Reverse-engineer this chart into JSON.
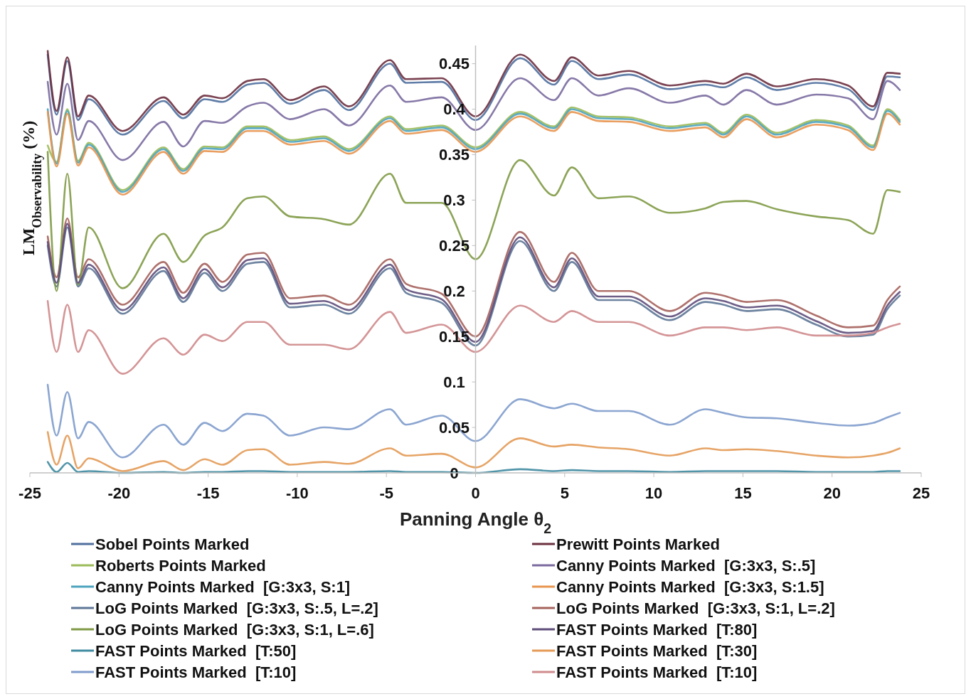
{
  "chart_data": {
    "type": "line",
    "xlabel": "Panning Angle θ$_{2}$",
    "ylabel": "LM$_{Observability}$ (%)",
    "xlim": [
      -25,
      25
    ],
    "xticks": [
      -25,
      -20,
      -15,
      -10,
      -5,
      0,
      5,
      10,
      15,
      20,
      25
    ],
    "ylim": [
      0,
      0.47
    ],
    "yticks": [
      0,
      0.05,
      0.1,
      0.15,
      0.2,
      0.25,
      0.3,
      0.35,
      0.4,
      0.45
    ],
    "grid": false,
    "legend": "bottom",
    "marker": "none",
    "line_style": "solid",
    "x": [
      -24,
      -23.5,
      -22.9,
      -22.3,
      -21.7,
      -19.8,
      -17.5,
      -16.4,
      -15.2,
      -14.2,
      -12.8,
      -11.9,
      -10.4,
      -8.5,
      -7.1,
      -4.8,
      -3.9,
      -1.9,
      0,
      2.5,
      4.4,
      5.4,
      6.9,
      8.6,
      10.9,
      12.9,
      13.9,
      15.2,
      16.9,
      19.1,
      20.9,
      22.3,
      23.1,
      23.8
    ],
    "series": [
      {
        "name": "Sobel Points Marked",
        "color": "#4f6f9d",
        "values": [
          0.46,
          0.394,
          0.453,
          0.388,
          0.411,
          0.372,
          0.409,
          0.39,
          0.411,
          0.408,
          0.427,
          0.429,
          0.406,
          0.421,
          0.399,
          0.45,
          0.429,
          0.43,
          0.388,
          0.456,
          0.427,
          0.453,
          0.433,
          0.438,
          0.422,
          0.427,
          0.424,
          0.435,
          0.421,
          0.429,
          0.422,
          0.399,
          0.436,
          0.435
        ]
      },
      {
        "name": "Prewitt Points Marked",
        "color": "#6b2f3f",
        "values": [
          0.464,
          0.398,
          0.457,
          0.392,
          0.415,
          0.376,
          0.413,
          0.394,
          0.415,
          0.412,
          0.431,
          0.433,
          0.41,
          0.425,
          0.403,
          0.454,
          0.433,
          0.434,
          0.392,
          0.46,
          0.431,
          0.457,
          0.437,
          0.442,
          0.426,
          0.431,
          0.428,
          0.439,
          0.425,
          0.433,
          0.426,
          0.403,
          0.44,
          0.439
        ]
      },
      {
        "name": "Roberts Points Marked",
        "color": "#9bbb59",
        "values": [
          0.36,
          0.342,
          0.4,
          0.343,
          0.363,
          0.311,
          0.358,
          0.334,
          0.359,
          0.358,
          0.381,
          0.381,
          0.366,
          0.37,
          0.356,
          0.392,
          0.378,
          0.382,
          0.358,
          0.397,
          0.381,
          0.402,
          0.392,
          0.391,
          0.381,
          0.385,
          0.374,
          0.394,
          0.374,
          0.388,
          0.382,
          0.36,
          0.4,
          0.388
        ]
      },
      {
        "name": "Canny Points Marked  [G:3x3, S:.5]",
        "color": "#7a6a9e",
        "values": [
          0.43,
          0.372,
          0.428,
          0.366,
          0.387,
          0.344,
          0.386,
          0.359,
          0.387,
          0.385,
          0.403,
          0.407,
          0.389,
          0.4,
          0.382,
          0.426,
          0.408,
          0.413,
          0.377,
          0.434,
          0.41,
          0.434,
          0.415,
          0.423,
          0.407,
          0.415,
          0.405,
          0.421,
          0.405,
          0.416,
          0.412,
          0.389,
          0.431,
          0.421
        ]
      },
      {
        "name": "Canny Points Marked  [G:3x3, S:1]",
        "color": "#4ba3bd",
        "values": [
          0.4,
          0.34,
          0.398,
          0.341,
          0.361,
          0.309,
          0.356,
          0.332,
          0.357,
          0.356,
          0.379,
          0.379,
          0.364,
          0.368,
          0.354,
          0.39,
          0.376,
          0.38,
          0.356,
          0.395,
          0.379,
          0.4,
          0.39,
          0.389,
          0.379,
          0.383,
          0.372,
          0.392,
          0.372,
          0.386,
          0.38,
          0.358,
          0.398,
          0.386
        ]
      },
      {
        "name": "Canny Points Marked  [G:3x3, S:1.5]",
        "color": "#e8954f",
        "values": [
          0.397,
          0.337,
          0.395,
          0.338,
          0.358,
          0.306,
          0.353,
          0.329,
          0.354,
          0.353,
          0.376,
          0.376,
          0.361,
          0.365,
          0.351,
          0.387,
          0.373,
          0.377,
          0.353,
          0.392,
          0.376,
          0.397,
          0.387,
          0.386,
          0.376,
          0.38,
          0.369,
          0.389,
          0.369,
          0.383,
          0.377,
          0.355,
          0.395,
          0.383
        ]
      },
      {
        "name": "LoG Points Marked  [G:3x3, S:.5, L=.2]",
        "color": "#5d7596",
        "values": [
          0.25,
          0.205,
          0.27,
          0.205,
          0.225,
          0.175,
          0.222,
          0.188,
          0.22,
          0.2,
          0.23,
          0.232,
          0.182,
          0.185,
          0.175,
          0.225,
          0.198,
          0.187,
          0.14,
          0.255,
          0.2,
          0.232,
          0.19,
          0.19,
          0.168,
          0.188,
          0.185,
          0.178,
          0.18,
          0.163,
          0.15,
          0.152,
          0.18,
          0.195
        ]
      },
      {
        "name": "LoG Points Marked  [G:3x3, S:1, L=.2]",
        "color": "#a5625c",
        "values": [
          0.26,
          0.215,
          0.28,
          0.215,
          0.235,
          0.185,
          0.232,
          0.198,
          0.23,
          0.21,
          0.24,
          0.242,
          0.192,
          0.195,
          0.185,
          0.235,
          0.208,
          0.197,
          0.15,
          0.265,
          0.21,
          0.242,
          0.2,
          0.2,
          0.178,
          0.198,
          0.195,
          0.188,
          0.19,
          0.173,
          0.16,
          0.162,
          0.19,
          0.205
        ]
      },
      {
        "name": "LoG Points Marked  [G:3x3, S:1, L=.6]",
        "color": "#7f9a45",
        "values": [
          0.353,
          0.2,
          0.329,
          0.207,
          0.27,
          0.203,
          0.263,
          0.232,
          0.261,
          0.27,
          0.302,
          0.304,
          0.282,
          0.279,
          0.273,
          0.329,
          0.297,
          0.297,
          0.235,
          0.344,
          0.305,
          0.336,
          0.302,
          0.304,
          0.286,
          0.291,
          0.298,
          0.299,
          0.29,
          0.282,
          0.278,
          0.263,
          0.311,
          0.309
        ]
      },
      {
        "name": "FAST Points Marked  [T:80]",
        "color": "#5e4c7a",
        "values": [
          0.254,
          0.209,
          0.274,
          0.209,
          0.229,
          0.179,
          0.226,
          0.192,
          0.224,
          0.204,
          0.234,
          0.236,
          0.186,
          0.189,
          0.179,
          0.229,
          0.202,
          0.191,
          0.144,
          0.259,
          0.204,
          0.236,
          0.194,
          0.194,
          0.172,
          0.192,
          0.189,
          0.182,
          0.184,
          0.167,
          0.154,
          0.156,
          0.184,
          0.199
        ]
      },
      {
        "name": "FAST Points Marked  [T:50]",
        "color": "#3f8aa0",
        "values": [
          0.012,
          0.001,
          0.011,
          0.001,
          0.002,
          0,
          0.001,
          0,
          0.001,
          0.001,
          0.002,
          0.002,
          0.001,
          0.001,
          0.001,
          0.002,
          0.001,
          0.001,
          0,
          0.004,
          0.002,
          0.003,
          0.002,
          0.002,
          0.001,
          0.002,
          0.002,
          0.002,
          0.002,
          0.001,
          0.001,
          0.001,
          0.002,
          0.002
        ]
      },
      {
        "name": "FAST Points Marked  [T:30]",
        "color": "#e39a55",
        "values": [
          0.045,
          0.009,
          0.041,
          0.005,
          0.016,
          0.002,
          0.013,
          0.003,
          0.015,
          0.009,
          0.025,
          0.026,
          0.009,
          0.012,
          0.01,
          0.027,
          0.019,
          0.021,
          0.006,
          0.038,
          0.029,
          0.031,
          0.028,
          0.026,
          0.019,
          0.027,
          0.025,
          0.026,
          0.024,
          0.019,
          0.017,
          0.019,
          0.022,
          0.027
        ]
      },
      {
        "name": "FAST Points Marked  [T:10]",
        "color": "#7f9ccc",
        "values": [
          0.097,
          0.041,
          0.089,
          0.038,
          0.056,
          0.017,
          0.053,
          0.031,
          0.055,
          0.046,
          0.065,
          0.063,
          0.041,
          0.05,
          0.048,
          0.07,
          0.053,
          0.063,
          0.035,
          0.081,
          0.071,
          0.076,
          0.068,
          0.068,
          0.053,
          0.07,
          0.066,
          0.061,
          0.06,
          0.055,
          0.052,
          0.055,
          0.061,
          0.066
        ]
      },
      {
        "name": "FAST Points Marked  [T:10]",
        "color": "#cf8a8c",
        "values": [
          0.189,
          0.133,
          0.185,
          0.133,
          0.157,
          0.109,
          0.148,
          0.13,
          0.152,
          0.145,
          0.166,
          0.166,
          0.141,
          0.141,
          0.136,
          0.177,
          0.154,
          0.163,
          0.133,
          0.184,
          0.166,
          0.178,
          0.166,
          0.166,
          0.151,
          0.16,
          0.16,
          0.157,
          0.16,
          0.151,
          0.151,
          0.154,
          0.16,
          0.164
        ]
      }
    ]
  }
}
